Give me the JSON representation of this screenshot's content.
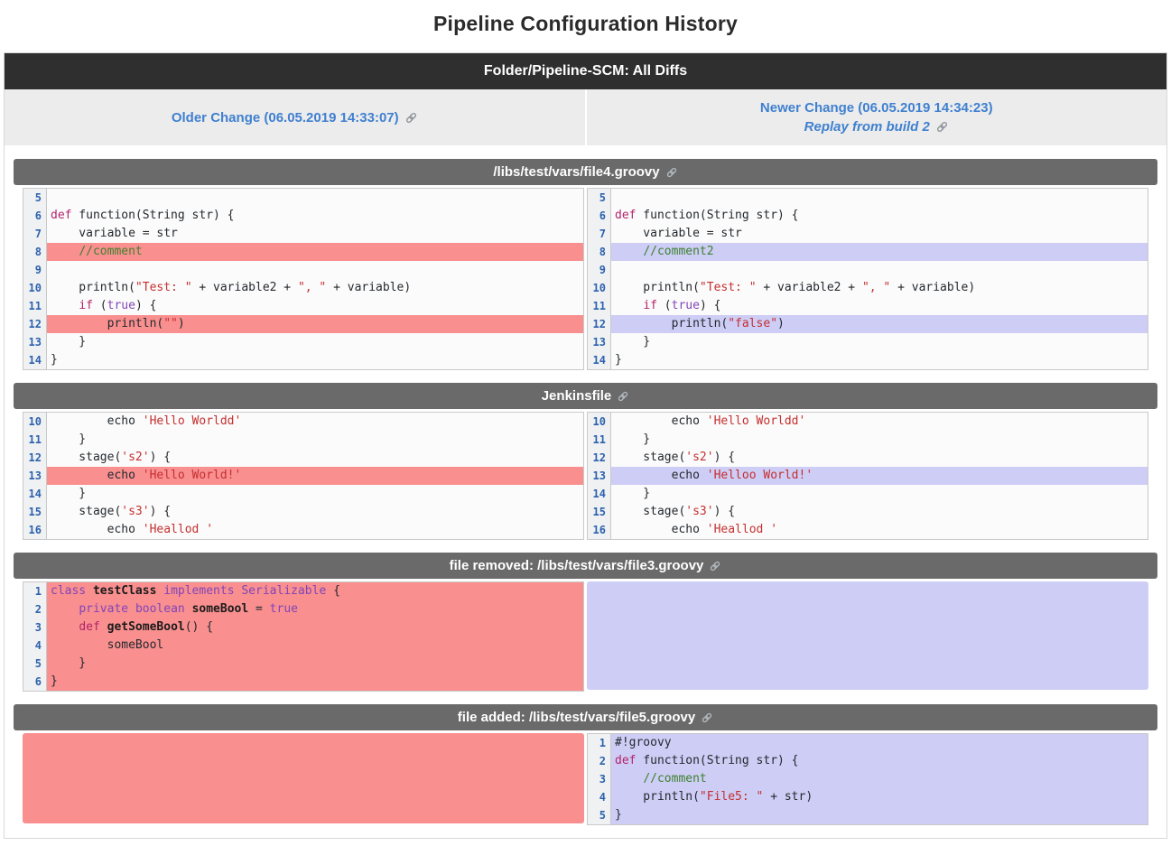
{
  "page": {
    "title": "Pipeline Configuration History"
  },
  "header": {
    "title": "Folder/Pipeline-SCM: All Diffs"
  },
  "changes": {
    "older": {
      "label": "Older Change (06.05.2019 14:33:07)"
    },
    "newer": {
      "label": "Newer Change (06.05.2019 14:34:23)",
      "replay": "Replay from build 2"
    }
  },
  "icons": {
    "link_icon": "chain-link"
  },
  "colors": {
    "accent_link_blue": "#4080d0",
    "line_number_blue": "#2c62ae",
    "removed_highlight": "#f98f8f",
    "added_highlight": "#cdcdf5",
    "main_bar_bg": "#2f2f2f",
    "section_header_bg": "#6a6a6a",
    "change_row_bg": "#ececec",
    "comment_green": "#3f8030",
    "string_red": "#c62f2f",
    "keyword_magenta": "#b3246b",
    "keyword_purple": "#8145b8"
  },
  "sections": [
    {
      "title": "/libs/test/vars/file4.groovy",
      "mode": "two-col",
      "left_block": null,
      "right_block": null,
      "rows": [
        {
          "n": "5",
          "ls": [],
          "lh": "",
          "rs": [],
          "rh": ""
        },
        {
          "n": "6",
          "ls": [
            [
              "k",
              "def"
            ],
            [
              "p",
              " function(String str) {"
            ]
          ],
          "lh": "",
          "rs": [
            [
              "k",
              "def"
            ],
            [
              "p",
              " function(String str) {"
            ]
          ],
          "rh": ""
        },
        {
          "n": "7",
          "ls": [
            [
              "p",
              "    variable = str"
            ]
          ],
          "lh": "",
          "rs": [
            [
              "p",
              "    variable = str"
            ]
          ],
          "rh": ""
        },
        {
          "n": "8",
          "ls": [
            [
              "p",
              "    "
            ],
            [
              "c",
              "//comment"
            ]
          ],
          "lh": "red",
          "rs": [
            [
              "p",
              "    "
            ],
            [
              "c",
              "//comment2"
            ]
          ],
          "rh": "blue"
        },
        {
          "n": "9",
          "ls": [],
          "lh": "",
          "rs": [],
          "rh": ""
        },
        {
          "n": "10",
          "ls": [
            [
              "p",
              "    println("
            ],
            [
              "s",
              "\"Test: \""
            ],
            [
              "p",
              " + variable2 + "
            ],
            [
              "s",
              "\", \""
            ],
            [
              "p",
              " + variable)"
            ]
          ],
          "lh": "",
          "rs": [
            [
              "p",
              "    println("
            ],
            [
              "s",
              "\"Test: \""
            ],
            [
              "p",
              " + variable2 + "
            ],
            [
              "s",
              "\", \""
            ],
            [
              "p",
              " + variable)"
            ]
          ],
          "rh": ""
        },
        {
          "n": "11",
          "ls": [
            [
              "p",
              "    "
            ],
            [
              "k",
              "if"
            ],
            [
              "p",
              " ("
            ],
            [
              "k2",
              "true"
            ],
            [
              "p",
              ") {"
            ]
          ],
          "lh": "",
          "rs": [
            [
              "p",
              "    "
            ],
            [
              "k",
              "if"
            ],
            [
              "p",
              " ("
            ],
            [
              "k2",
              "true"
            ],
            [
              "p",
              ") {"
            ]
          ],
          "rh": ""
        },
        {
          "n": "12",
          "ls": [
            [
              "p",
              "        println("
            ],
            [
              "s",
              "\"\""
            ],
            [
              "p",
              ")"
            ]
          ],
          "lh": "red",
          "rs": [
            [
              "p",
              "        println("
            ],
            [
              "s",
              "\"false\""
            ],
            [
              "p",
              ")"
            ]
          ],
          "rh": "blue"
        },
        {
          "n": "13",
          "ls": [
            [
              "p",
              "    }"
            ]
          ],
          "lh": "",
          "rs": [
            [
              "p",
              "    }"
            ]
          ],
          "rh": ""
        },
        {
          "n": "14",
          "ls": [
            [
              "p",
              "}"
            ]
          ],
          "lh": "",
          "rs": [
            [
              "p",
              "}"
            ]
          ],
          "rh": ""
        }
      ]
    },
    {
      "title": "Jenkinsfile",
      "mode": "two-col",
      "left_block": null,
      "right_block": null,
      "rows": [
        {
          "n": "10",
          "ls": [
            [
              "p",
              "        echo "
            ],
            [
              "s",
              "'Hello Worldd'"
            ]
          ],
          "lh": "",
          "rs": [
            [
              "p",
              "        echo "
            ],
            [
              "s",
              "'Hello Worldd'"
            ]
          ],
          "rh": ""
        },
        {
          "n": "11",
          "ls": [
            [
              "p",
              "    }"
            ]
          ],
          "lh": "",
          "rs": [
            [
              "p",
              "    }"
            ]
          ],
          "rh": ""
        },
        {
          "n": "12",
          "ls": [
            [
              "p",
              "    stage("
            ],
            [
              "s",
              "'s2'"
            ],
            [
              "p",
              ") {"
            ]
          ],
          "lh": "",
          "rs": [
            [
              "p",
              "    stage("
            ],
            [
              "s",
              "'s2'"
            ],
            [
              "p",
              ") {"
            ]
          ],
          "rh": ""
        },
        {
          "n": "13",
          "ls": [
            [
              "p",
              "        echo "
            ],
            [
              "s",
              "'Hello World!'"
            ]
          ],
          "lh": "red",
          "rs": [
            [
              "p",
              "        echo "
            ],
            [
              "s",
              "'Helloo World!'"
            ]
          ],
          "rh": "blue"
        },
        {
          "n": "14",
          "ls": [
            [
              "p",
              "    }"
            ]
          ],
          "lh": "",
          "rs": [
            [
              "p",
              "    }"
            ]
          ],
          "rh": ""
        },
        {
          "n": "15",
          "ls": [
            [
              "p",
              "    stage("
            ],
            [
              "s",
              "'s3'"
            ],
            [
              "p",
              ") {"
            ]
          ],
          "lh": "",
          "rs": [
            [
              "p",
              "    stage("
            ],
            [
              "s",
              "'s3'"
            ],
            [
              "p",
              ") {"
            ]
          ],
          "rh": ""
        },
        {
          "n": "16",
          "ls": [
            [
              "p",
              "        echo "
            ],
            [
              "s",
              "'Heallod '"
            ]
          ],
          "lh": "",
          "rs": [
            [
              "p",
              "        echo "
            ],
            [
              "s",
              "'Heallod '"
            ]
          ],
          "rh": ""
        }
      ]
    },
    {
      "title": "file removed: /libs/test/vars/file3.groovy",
      "mode": "left-only",
      "left_block": null,
      "right_block": "blue",
      "rows": [
        {
          "n": "1",
          "ls": [
            [
              "k2",
              "class"
            ],
            [
              "p",
              " "
            ],
            [
              "b",
              "testClass"
            ],
            [
              "p",
              " "
            ],
            [
              "k2",
              "implements"
            ],
            [
              "p",
              " "
            ],
            [
              "k2",
              "Serializable"
            ],
            [
              "p",
              " {"
            ]
          ],
          "lh": "red",
          "rs": [],
          "rh": ""
        },
        {
          "n": "2",
          "ls": [
            [
              "p",
              "    "
            ],
            [
              "k2",
              "private"
            ],
            [
              "p",
              " "
            ],
            [
              "k2",
              "boolean"
            ],
            [
              "p",
              " "
            ],
            [
              "b",
              "someBool"
            ],
            [
              "p",
              " = "
            ],
            [
              "k2",
              "true"
            ]
          ],
          "lh": "red",
          "rs": [],
          "rh": ""
        },
        {
          "n": "3",
          "ls": [
            [
              "p",
              "    "
            ],
            [
              "k",
              "def"
            ],
            [
              "p",
              " "
            ],
            [
              "b",
              "getSomeBool"
            ],
            [
              "p",
              "() {"
            ]
          ],
          "lh": "red",
          "rs": [],
          "rh": ""
        },
        {
          "n": "4",
          "ls": [
            [
              "p",
              "        someBool"
            ]
          ],
          "lh": "red",
          "rs": [],
          "rh": ""
        },
        {
          "n": "5",
          "ls": [
            [
              "p",
              "    }"
            ]
          ],
          "lh": "red",
          "rs": [],
          "rh": ""
        },
        {
          "n": "6",
          "ls": [
            [
              "p",
              "}"
            ]
          ],
          "lh": "red",
          "rs": [],
          "rh": ""
        }
      ]
    },
    {
      "title": "file added: /libs/test/vars/file5.groovy",
      "mode": "right-only",
      "left_block": "red",
      "right_block": null,
      "rows": [
        {
          "n": "1",
          "ls": [],
          "lh": "",
          "rs": [
            [
              "p",
              "#!groovy"
            ]
          ],
          "rh": "blue"
        },
        {
          "n": "2",
          "ls": [],
          "lh": "",
          "rs": [
            [
              "k",
              "def"
            ],
            [
              "p",
              " function(String str) {"
            ]
          ],
          "rh": "blue"
        },
        {
          "n": "3",
          "ls": [],
          "lh": "",
          "rs": [
            [
              "p",
              "    "
            ],
            [
              "c",
              "//comment"
            ]
          ],
          "rh": "blue"
        },
        {
          "n": "4",
          "ls": [],
          "lh": "",
          "rs": [
            [
              "p",
              "    println("
            ],
            [
              "s",
              "\"File5: \""
            ],
            [
              "p",
              " + str)"
            ]
          ],
          "rh": "blue"
        },
        {
          "n": "5",
          "ls": [],
          "lh": "",
          "rs": [
            [
              "p",
              "}"
            ]
          ],
          "rh": "blue"
        }
      ]
    }
  ]
}
